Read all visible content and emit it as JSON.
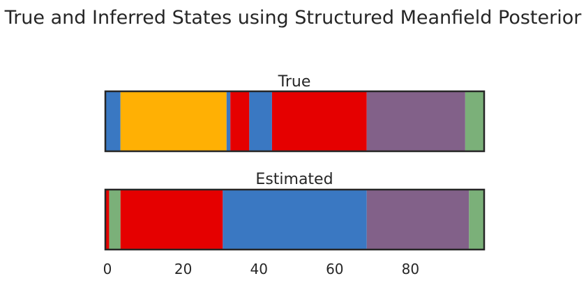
{
  "chart_data": {
    "type": "state-sequence",
    "title": "True and Inferred States using Structured Meanfield Posterior",
    "xlim": [
      0,
      100
    ],
    "xticks": [
      0,
      20,
      40,
      60,
      80
    ],
    "colors": {
      "blue": "#3a78c2",
      "orange": "#ffb004",
      "red": "#e50000",
      "purple": "#826189",
      "green": "#7bb079"
    },
    "panels": [
      {
        "title": "True",
        "segments": [
          {
            "start": 0,
            "end": 4,
            "color": "blue"
          },
          {
            "start": 4,
            "end": 32,
            "color": "orange"
          },
          {
            "start": 32,
            "end": 33,
            "color": "blue"
          },
          {
            "start": 33,
            "end": 38,
            "color": "red"
          },
          {
            "start": 38,
            "end": 44,
            "color": "blue"
          },
          {
            "start": 44,
            "end": 69,
            "color": "red"
          },
          {
            "start": 69,
            "end": 95,
            "color": "purple"
          },
          {
            "start": 95,
            "end": 100,
            "color": "green"
          }
        ]
      },
      {
        "title": "Estimated",
        "segments": [
          {
            "start": 0,
            "end": 1,
            "color": "red"
          },
          {
            "start": 1,
            "end": 4,
            "color": "green"
          },
          {
            "start": 4,
            "end": 31,
            "color": "red"
          },
          {
            "start": 31,
            "end": 69,
            "color": "blue"
          },
          {
            "start": 69,
            "end": 96,
            "color": "purple"
          },
          {
            "start": 96,
            "end": 100,
            "color": "green"
          }
        ]
      }
    ]
  }
}
